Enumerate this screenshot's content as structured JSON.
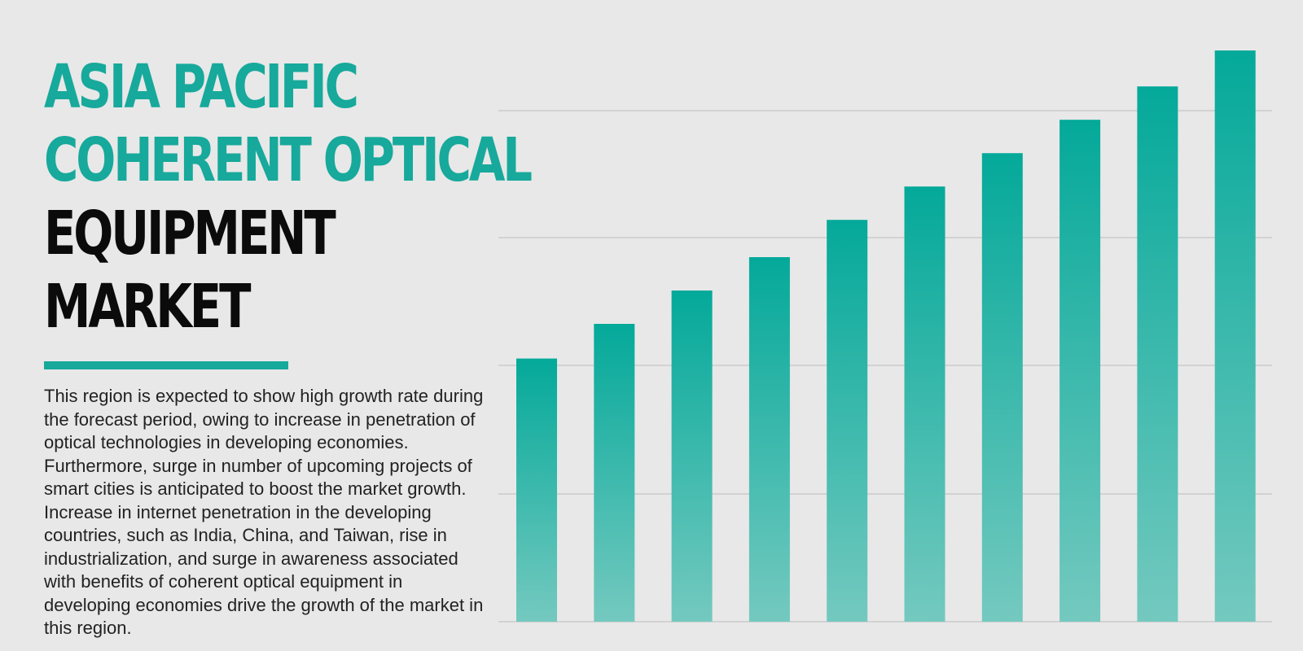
{
  "title": {
    "lines_teal": [
      "ASIA PACIFIC",
      "COHERENT OPTICAL"
    ],
    "lines_dark": [
      "EQUIPMENT",
      "MARKET"
    ]
  },
  "description": {
    "paragraphs": [
      "This region is expected to show high growth rate during the forecast period, owing to increase in penetration of optical technologies in developing economies. Furthermore, surge in number of upcoming projects of smart cities is anticipated to boost the market growth.",
      "Increase in internet penetration in the developing countries, such as India, China, and Taiwan, rise in industrialization, and surge in awareness associated with benefits of coherent optical equipment in developing economies drive the growth of the market in this region."
    ]
  },
  "colors": {
    "accent": "#17a99b",
    "bar_top": "#04a99a",
    "bar_bottom": "#74c9bf",
    "background": "#e8e8e8",
    "gridline": "#d2d2d2"
  },
  "chart_data": {
    "type": "bar",
    "values": [
      2.05,
      2.32,
      2.58,
      2.84,
      3.13,
      3.39,
      3.65,
      3.91,
      4.17,
      4.45
    ],
    "ylim": [
      0,
      4.45
    ],
    "grid": "horizontal",
    "legend": "none"
  }
}
